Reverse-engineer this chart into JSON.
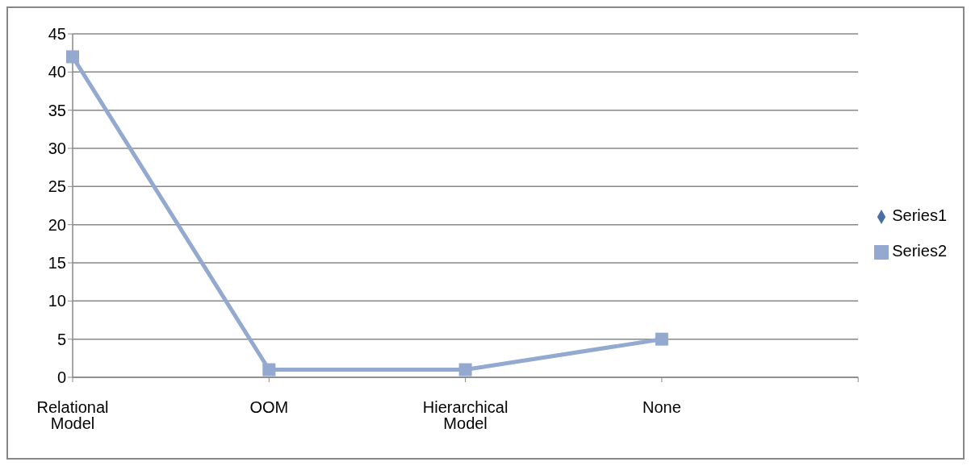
{
  "chart_data": {
    "type": "line",
    "categories": [
      "Relational Model",
      "OOM",
      "Hierarchical Model",
      "None",
      null
    ],
    "series": [
      {
        "name": "Series1",
        "color": "#4a6fa5",
        "marker": "diamond",
        "values": [
          null,
          null,
          null,
          null,
          null
        ]
      },
      {
        "name": "Series2",
        "color": "#94a9d0",
        "marker": "square",
        "values": [
          42,
          1,
          1,
          5,
          null
        ]
      }
    ],
    "ylim": [
      0,
      45
    ],
    "yticks": [
      0,
      5,
      10,
      15,
      20,
      25,
      30,
      35,
      40,
      45
    ],
    "grid": "y",
    "legend": "right",
    "line_style": "solid"
  }
}
